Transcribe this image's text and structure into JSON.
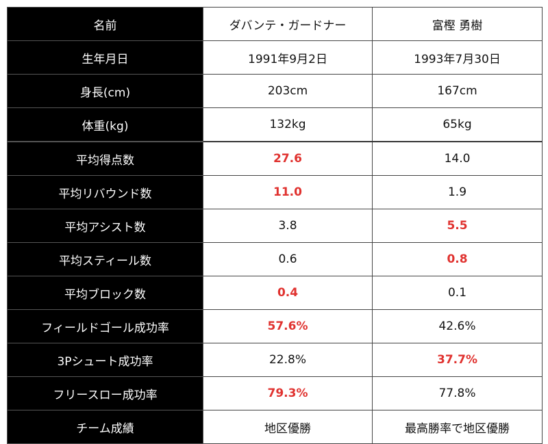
{
  "header": {
    "label": "名前",
    "player1": "ダバンテ・ガードナー",
    "player2": "富樫 勇樹"
  },
  "rows": [
    {
      "label": "生年月日",
      "p1": "1991年9月2日",
      "p2": "1993年7月30日",
      "highlight": ""
    },
    {
      "label": "身長(cm)",
      "p1": "203cm",
      "p2": "167cm",
      "highlight": ""
    },
    {
      "label": "体重(kg)",
      "p1": "132kg",
      "p2": "65kg",
      "highlight": ""
    },
    {
      "label": "平均得点数",
      "p1": "27.6",
      "p2": "14.0",
      "highlight": "p1"
    },
    {
      "label": "平均リバウンド数",
      "p1": "11.0",
      "p2": "1.9",
      "highlight": "p1"
    },
    {
      "label": "平均アシスト数",
      "p1": "3.8",
      "p2": "5.5",
      "highlight": "p2"
    },
    {
      "label": "平均スティール数",
      "p1": "0.6",
      "p2": "0.8",
      "highlight": "p2"
    },
    {
      "label": "平均ブロック数",
      "p1": "0.4",
      "p2": "0.1",
      "highlight": "p1"
    },
    {
      "label": "フィールドゴール成功率",
      "p1": "57.6%",
      "p2": "42.6%",
      "highlight": "p1"
    },
    {
      "label": "3Pシュート成功率",
      "p1": "22.8%",
      "p2": "37.7%",
      "highlight": "p2"
    },
    {
      "label": "フリースロー成功率",
      "p1": "79.3%",
      "p2": "77.8%",
      "highlight": "p1"
    },
    {
      "label": "チーム成績",
      "p1": "地区優勝",
      "p2": "最高勝率で地区優勝",
      "highlight": ""
    }
  ],
  "colors": {
    "label_bg": "#000000",
    "label_text": "#ffffff",
    "highlight": "#e0322f"
  }
}
